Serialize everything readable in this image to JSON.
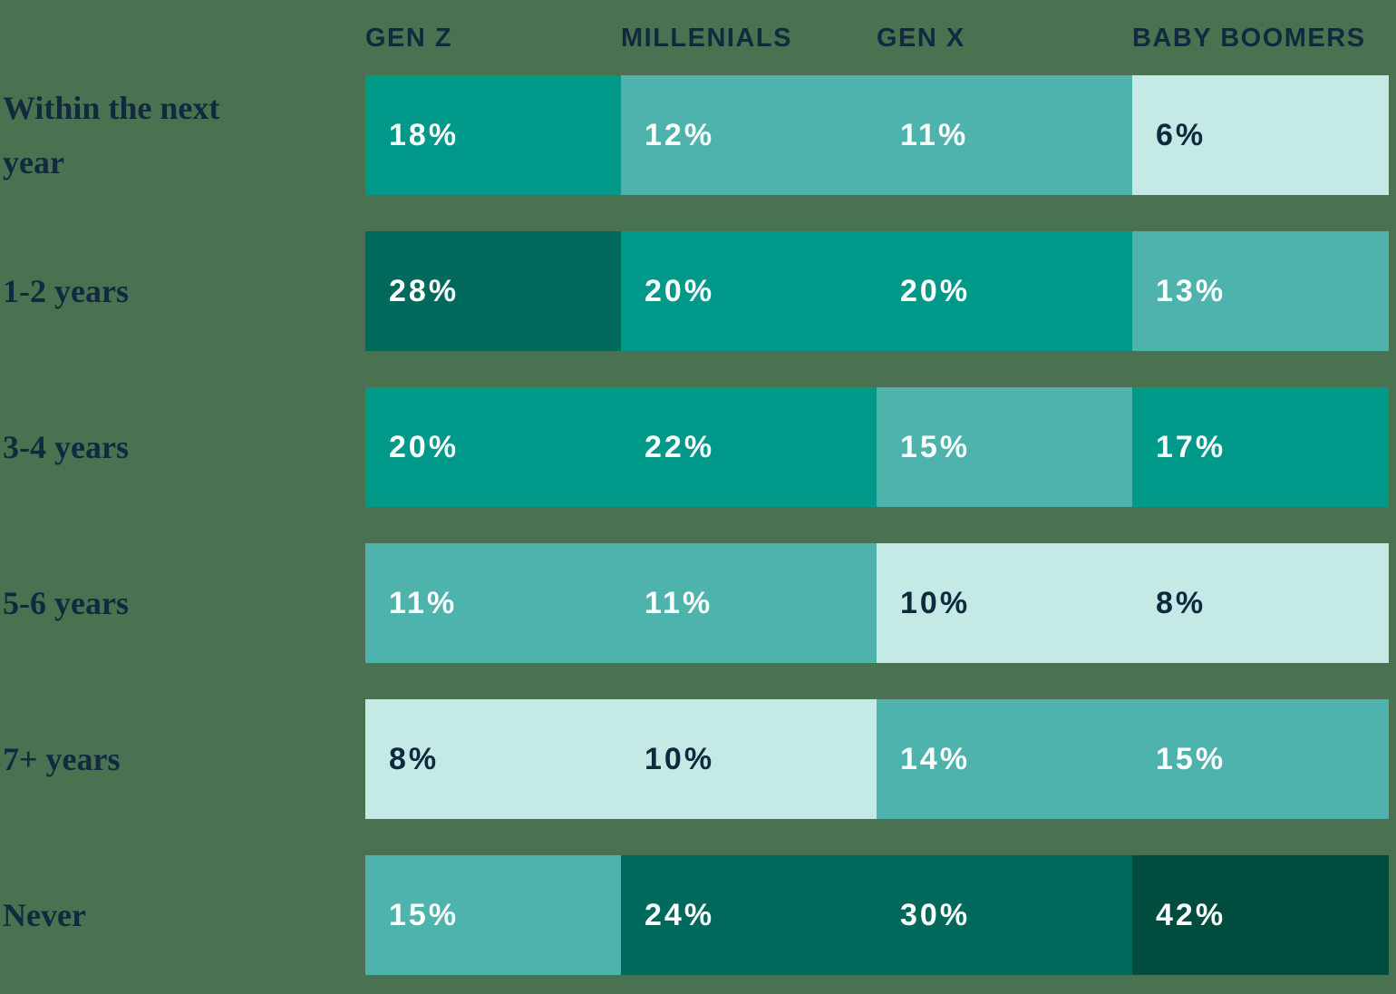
{
  "colors": {
    "background": "#4A7150",
    "header_text": "#112A3F",
    "label_text": "#112A3F",
    "tier_light_bg": "#C5E9E4",
    "tier_light_fg": "#0F2A3E",
    "tier_medium_bg": "#4DB3AC",
    "tier_teal_bg": "#009889",
    "tier_dark_bg": "#00695C",
    "tier_darkest_bg": "#004C3E",
    "cell_white_text": "#FFFFFF"
  },
  "chart_data": {
    "type": "heatmap",
    "unit": "%",
    "legend_position": "none",
    "title": "",
    "columns": [
      "GEN Z",
      "MILLENIALS",
      "GEN X",
      "BABY BOOMERS"
    ],
    "color_scale_note": "darker teal = higher percentage; light mint = lowest (6-10%), medium teal = 11-15%, teal = 17-22%, dark teal = 24-30%, darkest green = 42%",
    "rows": [
      {
        "label": "Within the next year",
        "values": [
          18,
          12,
          11,
          6
        ],
        "cells": [
          {
            "display": "18%",
            "bg": "#009889",
            "fg": "#FFFFFF"
          },
          {
            "display": "12%",
            "bg": "#4DB3AC",
            "fg": "#FFFFFF"
          },
          {
            "display": "11%",
            "bg": "#4DB3AC",
            "fg": "#FFFFFF"
          },
          {
            "display": "6%",
            "bg": "#C5E9E4",
            "fg": "#0F2A3E"
          }
        ]
      },
      {
        "label": "1-2 years",
        "values": [
          28,
          20,
          20,
          13
        ],
        "cells": [
          {
            "display": "28%",
            "bg": "#00695C",
            "fg": "#FFFFFF"
          },
          {
            "display": "20%",
            "bg": "#009889",
            "fg": "#FFFFFF"
          },
          {
            "display": "20%",
            "bg": "#009889",
            "fg": "#FFFFFF"
          },
          {
            "display": "13%",
            "bg": "#4DB3AC",
            "fg": "#FFFFFF"
          }
        ]
      },
      {
        "label": "3-4 years",
        "values": [
          20,
          22,
          15,
          17
        ],
        "cells": [
          {
            "display": "20%",
            "bg": "#009889",
            "fg": "#FFFFFF"
          },
          {
            "display": "22%",
            "bg": "#009889",
            "fg": "#FFFFFF"
          },
          {
            "display": "15%",
            "bg": "#4DB3AC",
            "fg": "#FFFFFF"
          },
          {
            "display": "17%",
            "bg": "#009889",
            "fg": "#FFFFFF"
          }
        ]
      },
      {
        "label": "5-6 years",
        "values": [
          11,
          11,
          10,
          8
        ],
        "cells": [
          {
            "display": "11%",
            "bg": "#4DB3AC",
            "fg": "#FFFFFF"
          },
          {
            "display": "11%",
            "bg": "#4DB3AC",
            "fg": "#FFFFFF"
          },
          {
            "display": "10%",
            "bg": "#C5E9E4",
            "fg": "#0F2A3E"
          },
          {
            "display": "8%",
            "bg": "#C5E9E4",
            "fg": "#0F2A3E"
          }
        ]
      },
      {
        "label": "7+ years",
        "values": [
          8,
          10,
          14,
          15
        ],
        "cells": [
          {
            "display": "8%",
            "bg": "#C5E9E4",
            "fg": "#0F2A3E"
          },
          {
            "display": "10%",
            "bg": "#C5E9E4",
            "fg": "#0F2A3E"
          },
          {
            "display": "14%",
            "bg": "#4DB3AC",
            "fg": "#FFFFFF"
          },
          {
            "display": "15%",
            "bg": "#4DB3AC",
            "fg": "#FFFFFF"
          }
        ]
      },
      {
        "label": "Never",
        "values": [
          15,
          24,
          30,
          42
        ],
        "cells": [
          {
            "display": "15%",
            "bg": "#4DB3AC",
            "fg": "#FFFFFF"
          },
          {
            "display": "24%",
            "bg": "#00695C",
            "fg": "#FFFFFF"
          },
          {
            "display": "30%",
            "bg": "#00695C",
            "fg": "#FFFFFF"
          },
          {
            "display": "42%",
            "bg": "#004C3E",
            "fg": "#FFFFFF"
          }
        ]
      }
    ]
  }
}
